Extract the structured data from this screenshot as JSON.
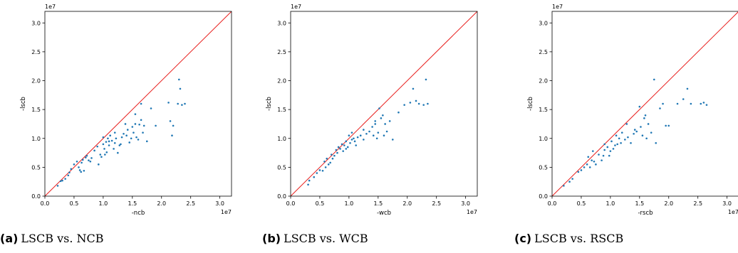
{
  "captions": [
    {
      "tag": "(a)",
      "text": "LSCB vs. NCB"
    },
    {
      "tag": "(b)",
      "text": "LSCB vs. WCB"
    },
    {
      "tag": "(c)",
      "text": "LSCB vs. RSCB"
    }
  ],
  "colors": {
    "points": "#1f77b4",
    "diagonal": "#e8201e",
    "axes": "#000000"
  },
  "chart_data": [
    {
      "type": "scatter",
      "xlabel": "-ncb",
      "ylabel": "-lscb",
      "scale_note": "1e7",
      "xlim": [
        0,
        3.2
      ],
      "ylim": [
        0,
        3.2
      ],
      "xticks": [
        "0.0",
        "0.5",
        "1.0",
        "1.5",
        "2.0",
        "2.5",
        "3.0"
      ],
      "yticks": [
        "0.0",
        "0.5",
        "1.0",
        "1.5",
        "2.0",
        "2.5",
        "3.0"
      ],
      "reference_line": "y = x",
      "points": [
        [
          0.22,
          0.18
        ],
        [
          0.27,
          0.26
        ],
        [
          0.3,
          0.27
        ],
        [
          0.35,
          0.3
        ],
        [
          0.4,
          0.36
        ],
        [
          0.42,
          0.41
        ],
        [
          0.45,
          0.47
        ],
        [
          0.5,
          0.55
        ],
        [
          0.55,
          0.6
        ],
        [
          0.58,
          0.5
        ],
        [
          0.6,
          0.45
        ],
        [
          0.62,
          0.42
        ],
        [
          0.63,
          0.58
        ],
        [
          0.65,
          0.63
        ],
        [
          0.67,
          0.44
        ],
        [
          0.7,
          0.67
        ],
        [
          0.72,
          0.7
        ],
        [
          0.75,
          0.62
        ],
        [
          0.78,
          0.6
        ],
        [
          0.8,
          0.66
        ],
        [
          0.85,
          0.79
        ],
        [
          0.9,
          0.86
        ],
        [
          0.92,
          0.55
        ],
        [
          0.95,
          0.72
        ],
        [
          0.97,
          0.68
        ],
        [
          1.0,
          1.02
        ],
        [
          1.0,
          0.9
        ],
        [
          1.02,
          0.82
        ],
        [
          1.03,
          0.72
        ],
        [
          1.05,
          0.94
        ],
        [
          1.06,
          0.76
        ],
        [
          1.08,
          1.0
        ],
        [
          1.1,
          0.88
        ],
        [
          1.12,
          1.05
        ],
        [
          1.15,
          0.96
        ],
        [
          1.18,
          0.82
        ],
        [
          1.2,
          0.92
        ],
        [
          1.22,
          1.0
        ],
        [
          1.25,
          0.75
        ],
        [
          1.28,
          0.88
        ],
        [
          1.3,
          0.9
        ],
        [
          1.32,
          1.02
        ],
        [
          1.35,
          1.08
        ],
        [
          1.38,
          1.25
        ],
        [
          1.4,
          1.05
        ],
        [
          1.42,
          1.15
        ],
        [
          1.45,
          0.93
        ],
        [
          1.48,
          1.0
        ],
        [
          1.5,
          1.2
        ],
        [
          1.52,
          1.1
        ],
        [
          1.55,
          1.25
        ],
        [
          1.57,
          1.02
        ],
        [
          1.6,
          0.98
        ],
        [
          1.62,
          1.24
        ],
        [
          1.65,
          1.32
        ],
        [
          1.68,
          1.1
        ],
        [
          1.7,
          1.22
        ],
        [
          1.75,
          0.95
        ],
        [
          1.82,
          1.52
        ],
        [
          1.9,
          1.22
        ],
        [
          2.12,
          1.62
        ],
        [
          2.15,
          1.3
        ],
        [
          2.18,
          1.05
        ],
        [
          2.2,
          1.22
        ],
        [
          2.28,
          1.6
        ],
        [
          2.3,
          2.02
        ],
        [
          2.32,
          1.86
        ],
        [
          2.35,
          1.58
        ],
        [
          2.4,
          1.6
        ],
        [
          1.1,
          0.95
        ],
        [
          1.2,
          1.1
        ],
        [
          1.55,
          1.42
        ],
        [
          1.65,
          1.6
        ]
      ]
    },
    {
      "type": "scatter",
      "xlabel": "-wcb",
      "ylabel": "-lscb",
      "scale_note": "1e7",
      "xlim": [
        0,
        3.2
      ],
      "ylim": [
        0,
        3.2
      ],
      "xticks": [
        "0.0",
        "0.5",
        "1.0",
        "1.5",
        "2.0",
        "2.5",
        "3.0"
      ],
      "yticks": [
        "0.0",
        "0.5",
        "1.0",
        "1.5",
        "2.0",
        "2.5",
        "3.0"
      ],
      "reference_line": "y = x",
      "points": [
        [
          0.3,
          0.2
        ],
        [
          0.32,
          0.27
        ],
        [
          0.4,
          0.33
        ],
        [
          0.45,
          0.4
        ],
        [
          0.5,
          0.45
        ],
        [
          0.55,
          0.44
        ],
        [
          0.58,
          0.6
        ],
        [
          0.6,
          0.5
        ],
        [
          0.62,
          0.65
        ],
        [
          0.65,
          0.55
        ],
        [
          0.68,
          0.58
        ],
        [
          0.7,
          0.72
        ],
        [
          0.72,
          0.65
        ],
        [
          0.75,
          0.7
        ],
        [
          0.78,
          0.8
        ],
        [
          0.8,
          0.75
        ],
        [
          0.82,
          0.85
        ],
        [
          0.85,
          0.82
        ],
        [
          0.88,
          0.9
        ],
        [
          0.9,
          0.78
        ],
        [
          0.92,
          0.88
        ],
        [
          0.95,
          0.95
        ],
        [
          0.98,
          0.85
        ],
        [
          1.0,
          1.05
        ],
        [
          1.02,
          0.92
        ],
        [
          1.05,
          0.98
        ],
        [
          1.08,
          1.0
        ],
        [
          1.1,
          0.95
        ],
        [
          1.12,
          0.88
        ],
        [
          1.15,
          1.02
        ],
        [
          1.2,
          1.05
        ],
        [
          1.25,
          0.98
        ],
        [
          1.3,
          1.08
        ],
        [
          1.35,
          1.12
        ],
        [
          1.4,
          1.2
        ],
        [
          1.42,
          1.05
        ],
        [
          1.45,
          1.25
        ],
        [
          1.48,
          1.0
        ],
        [
          1.5,
          1.1
        ],
        [
          1.52,
          1.52
        ],
        [
          1.55,
          1.35
        ],
        [
          1.58,
          1.4
        ],
        [
          1.6,
          1.05
        ],
        [
          1.62,
          1.25
        ],
        [
          1.65,
          1.12
        ],
        [
          1.7,
          1.3
        ],
        [
          1.75,
          0.98
        ],
        [
          1.85,
          1.45
        ],
        [
          1.95,
          1.58
        ],
        [
          2.05,
          1.62
        ],
        [
          2.1,
          1.86
        ],
        [
          2.15,
          1.65
        ],
        [
          2.2,
          1.6
        ],
        [
          2.28,
          1.58
        ],
        [
          2.32,
          2.02
        ],
        [
          2.35,
          1.6
        ],
        [
          0.95,
          0.82
        ],
        [
          1.05,
          1.1
        ],
        [
          1.25,
          1.15
        ],
        [
          1.45,
          1.3
        ]
      ]
    },
    {
      "type": "scatter",
      "xlabel": "-rscb",
      "ylabel": "-lscb",
      "scale_note": "1e7",
      "xlim": [
        0,
        3.2
      ],
      "ylim": [
        0,
        3.2
      ],
      "xticks": [
        "0.0",
        "0.5",
        "1.0",
        "1.5",
        "2.0",
        "2.5",
        "3.0"
      ],
      "yticks": [
        "0.0",
        "0.5",
        "1.0",
        "1.5",
        "2.0",
        "2.5",
        "3.0"
      ],
      "reference_line": "y = x",
      "points": [
        [
          0.2,
          0.18
        ],
        [
          0.3,
          0.25
        ],
        [
          0.35,
          0.3
        ],
        [
          0.45,
          0.42
        ],
        [
          0.5,
          0.45
        ],
        [
          0.55,
          0.5
        ],
        [
          0.6,
          0.55
        ],
        [
          0.62,
          0.68
        ],
        [
          0.65,
          0.5
        ],
        [
          0.68,
          0.62
        ],
        [
          0.7,
          0.78
        ],
        [
          0.72,
          0.6
        ],
        [
          0.75,
          0.55
        ],
        [
          0.8,
          0.72
        ],
        [
          0.85,
          0.62
        ],
        [
          0.88,
          0.7
        ],
        [
          0.9,
          0.8
        ],
        [
          0.95,
          0.85
        ],
        [
          0.98,
          0.7
        ],
        [
          1.0,
          0.78
        ],
        [
          1.02,
          0.95
        ],
        [
          1.05,
          0.82
        ],
        [
          1.08,
          0.88
        ],
        [
          1.1,
          1.05
        ],
        [
          1.12,
          0.9
        ],
        [
          1.15,
          1.0
        ],
        [
          1.18,
          0.92
        ],
        [
          1.2,
          1.1
        ],
        [
          1.25,
          0.98
        ],
        [
          1.3,
          1.02
        ],
        [
          1.35,
          0.92
        ],
        [
          1.4,
          1.08
        ],
        [
          1.45,
          1.12
        ],
        [
          1.5,
          1.55
        ],
        [
          1.52,
          1.2
        ],
        [
          1.55,
          1.05
        ],
        [
          1.58,
          1.35
        ],
        [
          1.6,
          1.4
        ],
        [
          1.62,
          1.0
        ],
        [
          1.65,
          1.25
        ],
        [
          1.7,
          1.1
        ],
        [
          1.75,
          2.02
        ],
        [
          1.78,
          0.92
        ],
        [
          1.85,
          1.52
        ],
        [
          1.9,
          1.6
        ],
        [
          1.95,
          1.22
        ],
        [
          2.0,
          1.22
        ],
        [
          2.15,
          1.6
        ],
        [
          2.25,
          1.68
        ],
        [
          2.32,
          1.86
        ],
        [
          2.38,
          1.6
        ],
        [
          2.55,
          1.6
        ],
        [
          2.6,
          1.62
        ],
        [
          2.65,
          1.58
        ],
        [
          0.9,
          0.9
        ],
        [
          1.28,
          1.25
        ],
        [
          1.42,
          1.15
        ]
      ]
    }
  ]
}
